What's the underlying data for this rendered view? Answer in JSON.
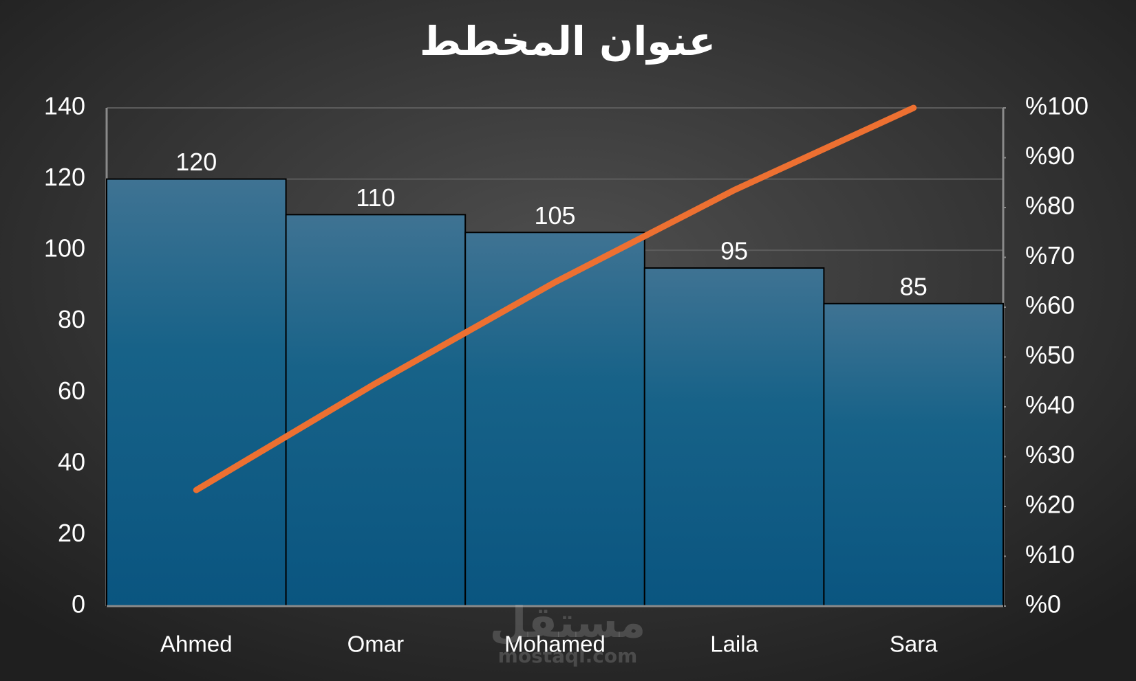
{
  "chart_data": {
    "type": "pareto",
    "title": "عنوان المخطط",
    "categories": [
      "Ahmed",
      "Omar",
      "Mohamed",
      "Laila",
      "Sara"
    ],
    "series": [
      {
        "type": "bar",
        "color": "#1a6489",
        "values": [
          120,
          110,
          105,
          95,
          85
        ]
      },
      {
        "type": "line",
        "color": "#ed7031",
        "axis": "y2",
        "values": [
          23.3,
          44.7,
          65.0,
          83.5,
          100
        ]
      }
    ],
    "data_labels": true,
    "ylim": [
      0,
      140
    ],
    "yticks": [
      0,
      20,
      40,
      60,
      80,
      100,
      120,
      140
    ],
    "y2lim": [
      0,
      100
    ],
    "y2ticks": [
      {
        "value": 0,
        "label": "%0"
      },
      {
        "value": 10,
        "label": "%10"
      },
      {
        "value": 20,
        "label": "%20"
      },
      {
        "value": 30,
        "label": "%30"
      },
      {
        "value": 40,
        "label": "%40"
      },
      {
        "value": 50,
        "label": "%50"
      },
      {
        "value": 60,
        "label": "%60"
      },
      {
        "value": 70,
        "label": "%70"
      },
      {
        "value": 80,
        "label": "%80"
      },
      {
        "value": 90,
        "label": "%90"
      },
      {
        "value": 100,
        "label": "%100"
      }
    ],
    "grid": true,
    "watermark": {
      "logo": "مستقل",
      "site": "mostaql.com"
    }
  }
}
